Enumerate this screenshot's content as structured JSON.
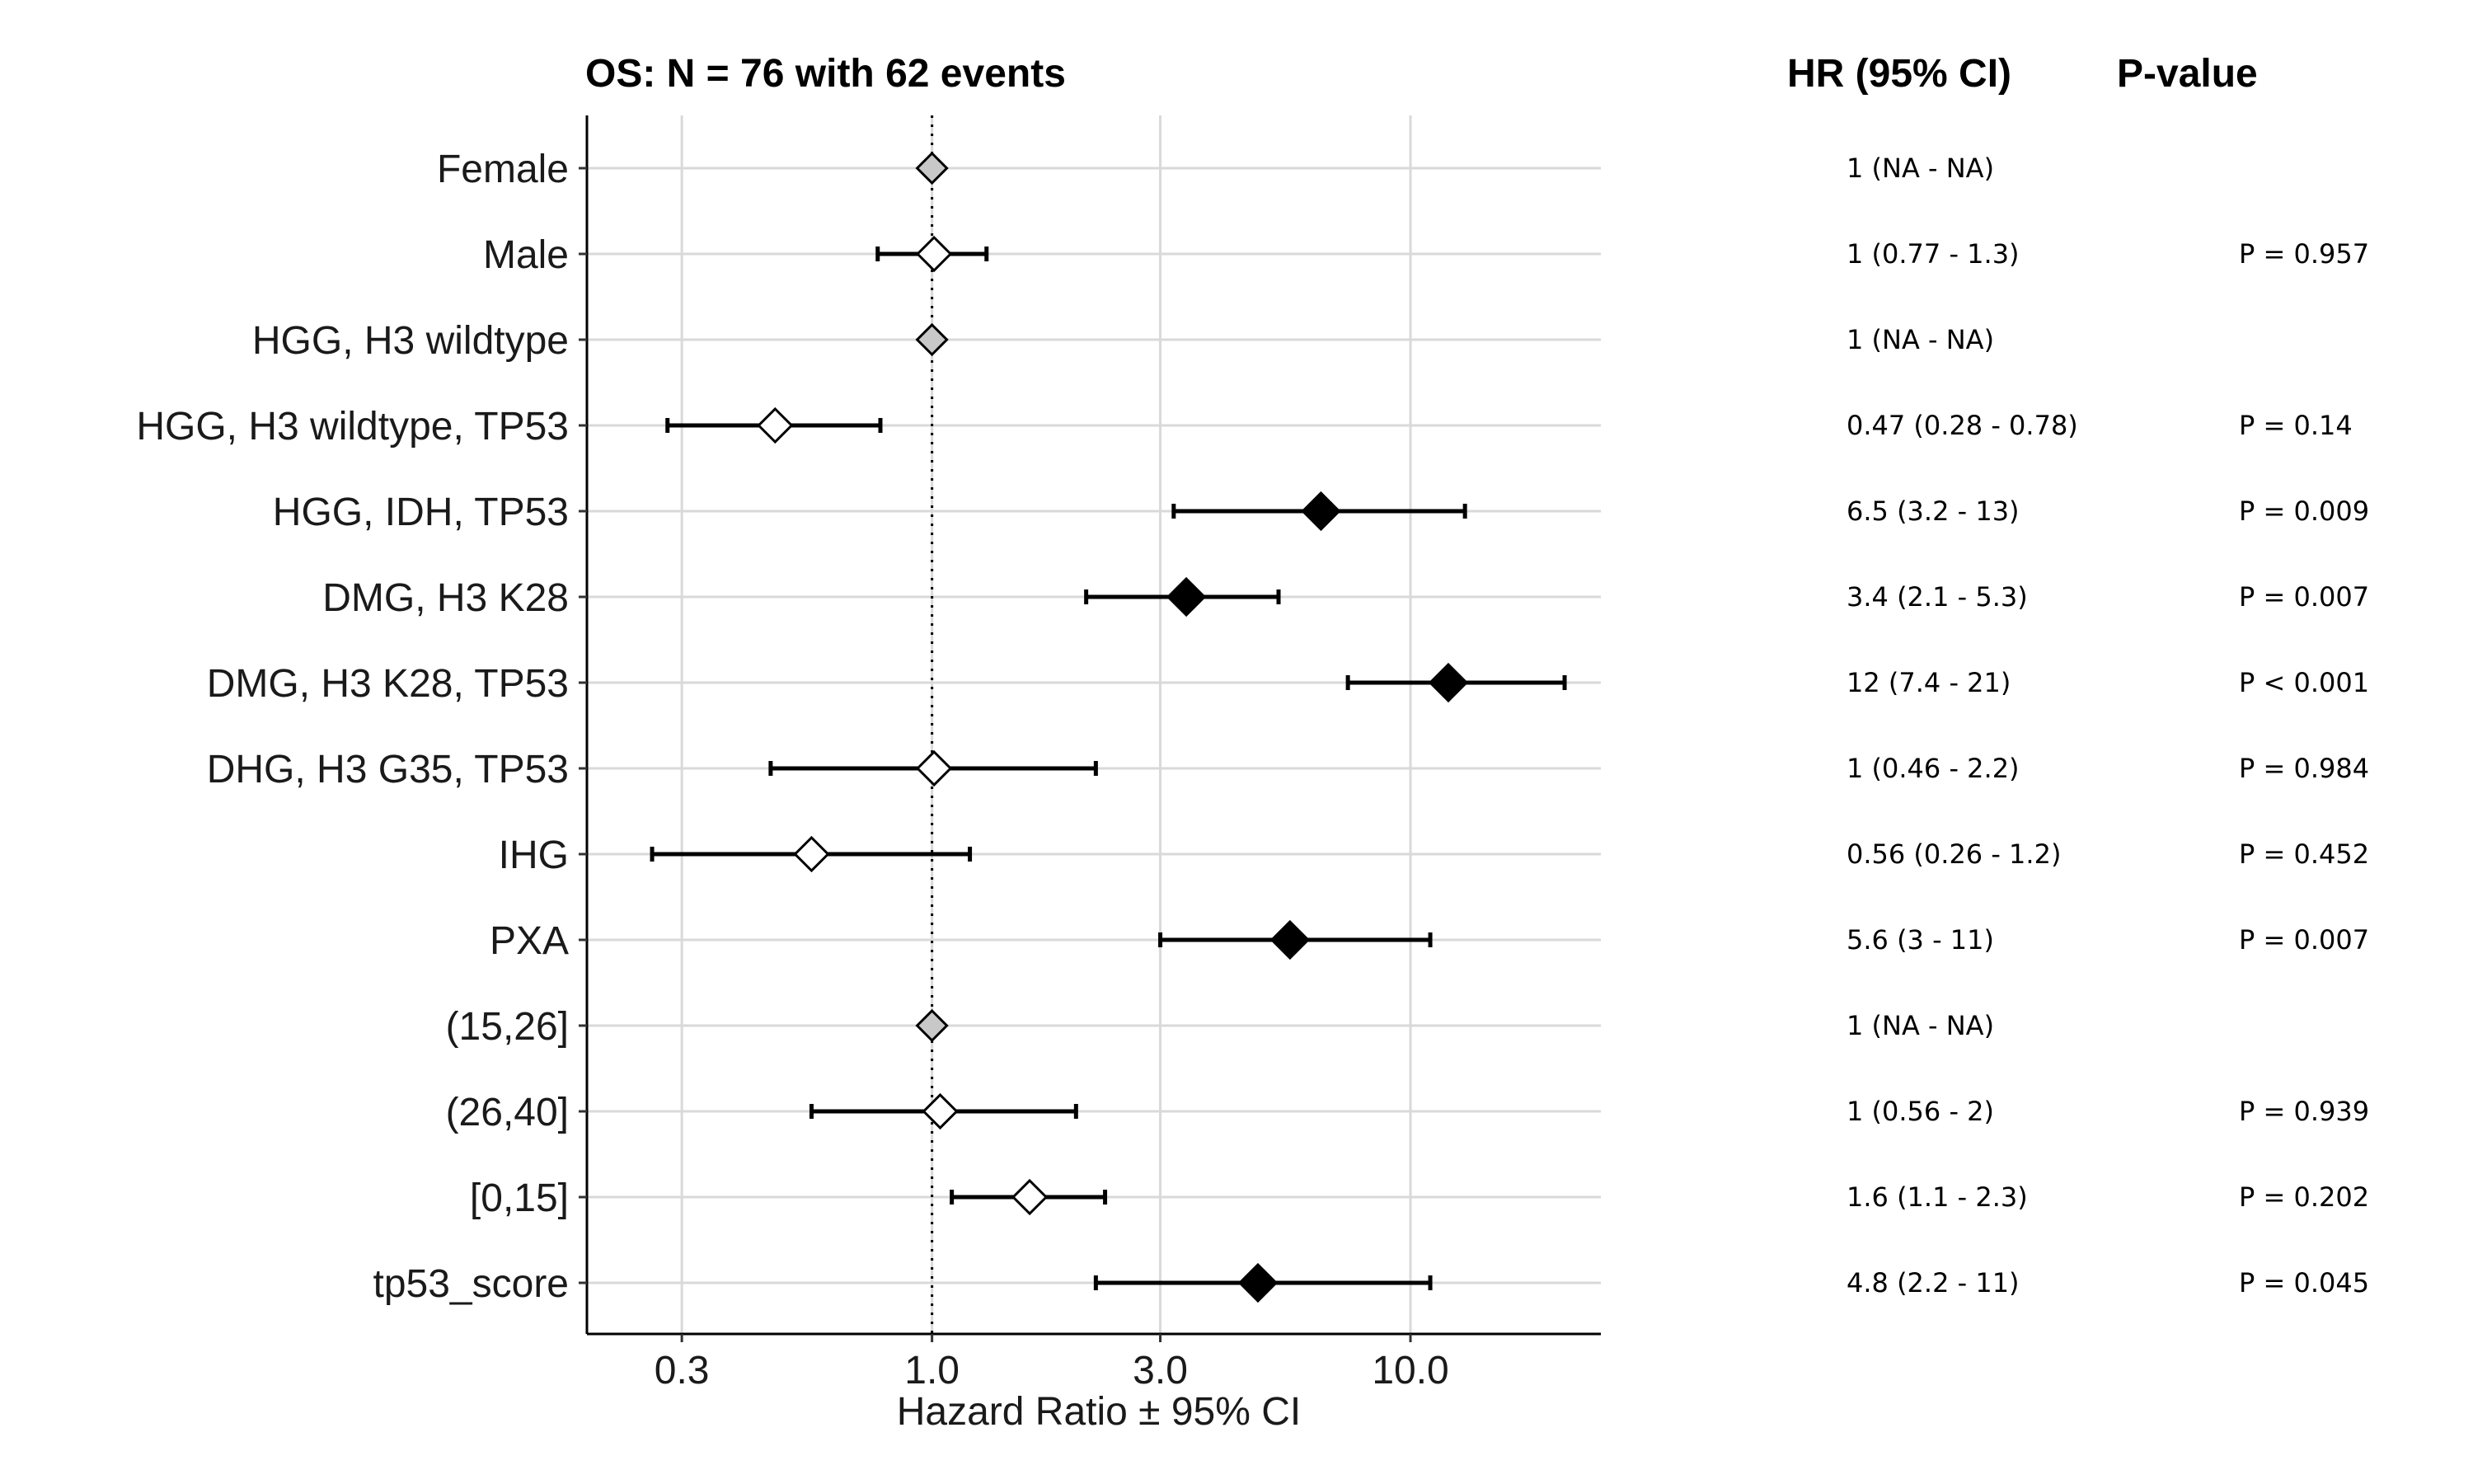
{
  "chart_data": {
    "type": "forest",
    "title": "OS: N = 76 with 62 events",
    "xlabel": "Hazard Ratio ± 95% CI",
    "x_scale": "log",
    "xlim": [
      0.19,
      25
    ],
    "x_ticks": [
      {
        "value": 0.3,
        "label": "0.3"
      },
      {
        "value": 1.0,
        "label": "1.0"
      },
      {
        "value": 3.0,
        "label": "3.0"
      },
      {
        "value": 10.0,
        "label": "10.0"
      }
    ],
    "reference_line": 1,
    "grid": true,
    "columns": {
      "hr_header": "HR (95% CI)",
      "p_header": "P-value"
    },
    "rows": [
      {
        "label": "Female",
        "hr": 1,
        "lo": null,
        "hi": null,
        "hr_text": "1 (NA - NA)",
        "p_text": "",
        "marker": "reference"
      },
      {
        "label": "Male",
        "hr": 1.01,
        "lo": 0.77,
        "hi": 1.3,
        "hr_text": "1 (0.77 - 1.3)",
        "p_text": "P = 0.957",
        "marker": "nonsignificant"
      },
      {
        "label": "HGG, H3 wildtype",
        "hr": 1,
        "lo": null,
        "hi": null,
        "hr_text": "1 (NA - NA)",
        "p_text": "",
        "marker": "reference"
      },
      {
        "label": "HGG, H3 wildtype, TP53",
        "hr": 0.47,
        "lo": 0.28,
        "hi": 0.78,
        "hr_text": "0.47 (0.28 - 0.78)",
        "p_text": "P = 0.14",
        "marker": "nonsignificant"
      },
      {
        "label": "HGG, IDH, TP53",
        "hr": 6.5,
        "lo": 3.2,
        "hi": 13,
        "hr_text": "6.5 (3.2 - 13)",
        "p_text": "P = 0.009",
        "marker": "significant"
      },
      {
        "label": "DMG, H3 K28",
        "hr": 3.4,
        "lo": 2.1,
        "hi": 5.3,
        "hr_text": "3.4 (2.1 - 5.3)",
        "p_text": "P = 0.007",
        "marker": "significant"
      },
      {
        "label": "DMG, H3 K28, TP53",
        "hr": 12,
        "lo": 7.4,
        "hi": 21,
        "hr_text": "12 (7.4 - 21)",
        "p_text": "P < 0.001",
        "marker": "significant"
      },
      {
        "label": "DHG, H3 G35, TP53",
        "hr": 1.01,
        "lo": 0.46,
        "hi": 2.2,
        "hr_text": "1 (0.46 - 2.2)",
        "p_text": "P = 0.984",
        "marker": "nonsignificant"
      },
      {
        "label": "IHG",
        "hr": 0.56,
        "lo": 0.26,
        "hi": 1.2,
        "hr_text": "0.56 (0.26 - 1.2)",
        "p_text": "P = 0.452",
        "marker": "nonsignificant"
      },
      {
        "label": "PXA",
        "hr": 5.6,
        "lo": 3,
        "hi": 11,
        "hr_text": "5.6 (3 - 11)",
        "p_text": "P = 0.007",
        "marker": "significant"
      },
      {
        "label": "(15,26]",
        "hr": 1,
        "lo": null,
        "hi": null,
        "hr_text": "1 (NA - NA)",
        "p_text": "",
        "marker": "reference"
      },
      {
        "label": "(26,40]",
        "hr": 1.04,
        "lo": 0.56,
        "hi": 2,
        "hr_text": "1 (0.56 - 2)",
        "p_text": "P = 0.939",
        "marker": "nonsignificant"
      },
      {
        "label": "[0,15]",
        "hr": 1.6,
        "lo": 1.1,
        "hi": 2.3,
        "hr_text": "1.6 (1.1 - 2.3)",
        "p_text": "P = 0.202",
        "marker": "nonsignificant"
      },
      {
        "label": "tp53_score",
        "hr": 4.8,
        "lo": 2.2,
        "hi": 11,
        "hr_text": "4.8 (2.2 - 11)",
        "p_text": "P = 0.045",
        "marker": "significant"
      }
    ],
    "colors": {
      "significant_fill": "#000000",
      "nonsignificant_fill": "#ffffff",
      "reference_fill": "#c8c8c8",
      "grid": "#d9d9d9",
      "axis": "#000000"
    }
  }
}
